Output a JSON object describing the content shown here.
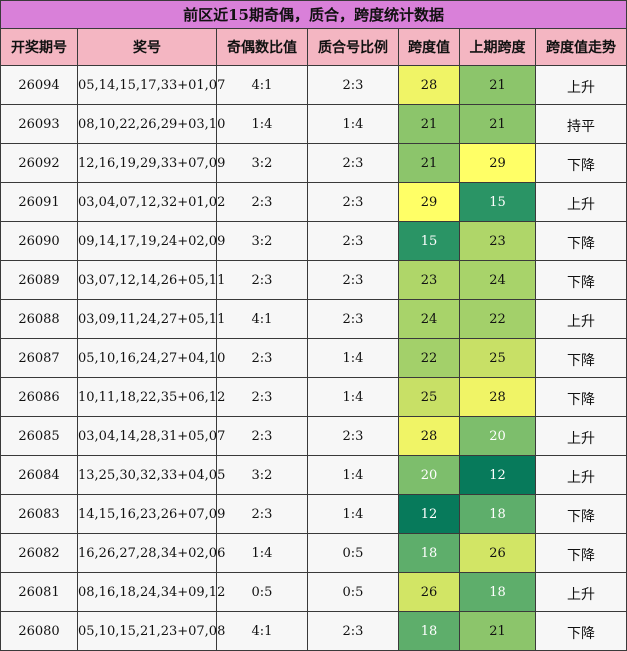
{
  "title": "前区近15期奇偶，质合，跨度统计数据",
  "headers": [
    "开奖期号",
    "奖号",
    "奇偶数比值",
    "质合号比例",
    "跨度值",
    "上期跨度",
    "跨度值走势"
  ],
  "rows": [
    {
      "period": "26094",
      "numbers": "05,14,15,17,33+01,07",
      "odd_even": "4:1",
      "prime_comp": "2:3",
      "span": "28",
      "prev_span": "21",
      "trend": "上升"
    },
    {
      "period": "26093",
      "numbers": "08,10,22,26,29+03,10",
      "odd_even": "1:4",
      "prime_comp": "1:4",
      "span": "21",
      "prev_span": "21",
      "trend": "持平"
    },
    {
      "period": "26092",
      "numbers": "12,16,19,29,33+07,09",
      "odd_even": "3:2",
      "prime_comp": "2:3",
      "span": "21",
      "prev_span": "29",
      "trend": "下降"
    },
    {
      "period": "26091",
      "numbers": "03,04,07,12,32+01,02",
      "odd_even": "2:3",
      "prime_comp": "2:3",
      "span": "29",
      "prev_span": "15",
      "trend": "上升"
    },
    {
      "period": "26090",
      "numbers": "09,14,17,19,24+02,09",
      "odd_even": "3:2",
      "prime_comp": "2:3",
      "span": "15",
      "prev_span": "23",
      "trend": "下降"
    },
    {
      "period": "26089",
      "numbers": "03,07,12,14,26+05,11",
      "odd_even": "2:3",
      "prime_comp": "2:3",
      "span": "23",
      "prev_span": "24",
      "trend": "下降"
    },
    {
      "period": "26088",
      "numbers": "03,09,11,24,27+05,11",
      "odd_even": "4:1",
      "prime_comp": "2:3",
      "span": "24",
      "prev_span": "22",
      "trend": "上升"
    },
    {
      "period": "26087",
      "numbers": "05,10,16,24,27+04,10",
      "odd_even": "2:3",
      "prime_comp": "1:4",
      "span": "22",
      "prev_span": "25",
      "trend": "下降"
    },
    {
      "period": "26086",
      "numbers": "10,11,18,22,35+06,12",
      "odd_even": "2:3",
      "prime_comp": "1:4",
      "span": "25",
      "prev_span": "28",
      "trend": "下降"
    },
    {
      "period": "26085",
      "numbers": "03,04,14,28,31+05,07",
      "odd_even": "2:3",
      "prime_comp": "2:3",
      "span": "28",
      "prev_span": "20",
      "trend": "上升"
    },
    {
      "period": "26084",
      "numbers": "13,25,30,32,33+04,05",
      "odd_even": "3:2",
      "prime_comp": "1:4",
      "span": "20",
      "prev_span": "12",
      "trend": "上升"
    },
    {
      "period": "26083",
      "numbers": "14,15,16,23,26+07,09",
      "odd_even": "2:3",
      "prime_comp": "1:4",
      "span": "12",
      "prev_span": "18",
      "trend": "下降"
    },
    {
      "period": "26082",
      "numbers": "16,26,27,28,34+02,06",
      "odd_even": "1:4",
      "prime_comp": "0:5",
      "span": "18",
      "prev_span": "26",
      "trend": "下降"
    },
    {
      "period": "26081",
      "numbers": "08,16,18,24,34+09,12",
      "odd_even": "0:5",
      "prime_comp": "0:5",
      "span": "26",
      "prev_span": "18",
      "trend": "上升"
    },
    {
      "period": "26080",
      "numbers": "05,10,15,21,23+07,08",
      "odd_even": "4:1",
      "prime_comp": "2:3",
      "span": "18",
      "prev_span": "21",
      "trend": "下降"
    }
  ],
  "span_colors": {
    "12": {
      "bg": "#077a5b",
      "fg": "#ffffff"
    },
    "15": {
      "bg": "#2a9465",
      "fg": "#ffffff"
    },
    "18": {
      "bg": "#5eae6b",
      "fg": "#ffffff"
    },
    "20": {
      "bg": "#7dbe6c",
      "fg": "#ffffff"
    },
    "21": {
      "bg": "#8cc56b",
      "fg": "#111111"
    },
    "22": {
      "bg": "#a3d06a",
      "fg": "#111111"
    },
    "23": {
      "bg": "#afd669",
      "fg": "#111111"
    },
    "24": {
      "bg": "#a8d36a",
      "fg": "#111111"
    },
    "25": {
      "bg": "#c8e066",
      "fg": "#111111"
    },
    "26": {
      "bg": "#d2e565",
      "fg": "#111111"
    },
    "28": {
      "bg": "#f0f466",
      "fg": "#111111"
    },
    "29": {
      "bg": "#ffff66",
      "fg": "#111111"
    }
  }
}
